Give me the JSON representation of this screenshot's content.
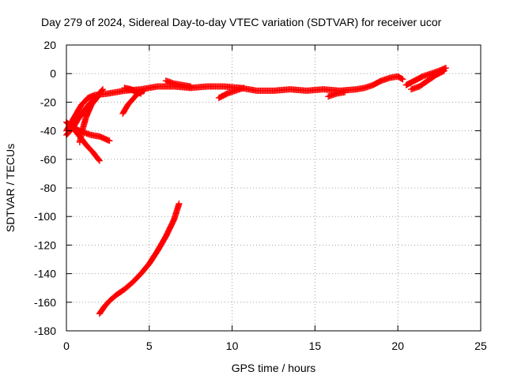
{
  "chart_data": {
    "type": "scatter",
    "title": "Day 279 of 2024, Sidereal Day-to-day VTEC variation (SDTVAR) for receiver ucor",
    "xlabel": "GPS time / hours",
    "ylabel": "SDTVAR / TECUs",
    "xlim": [
      0,
      25
    ],
    "ylim": [
      -180,
      20
    ],
    "xticks": [
      0,
      5,
      10,
      15,
      20,
      25
    ],
    "yticks": [
      20,
      0,
      -20,
      -40,
      -60,
      -80,
      -100,
      -120,
      -140,
      -160,
      -180
    ],
    "grid": true,
    "marker": "+",
    "series_color": "#ff0000",
    "series": [
      {
        "name": "arc-main",
        "points": [
          [
            0.0,
            -40
          ],
          [
            0.3,
            -34
          ],
          [
            0.6,
            -28
          ],
          [
            0.9,
            -22
          ],
          [
            1.3,
            -17
          ],
          [
            1.7,
            -15
          ],
          [
            2.5,
            -14
          ],
          [
            3.5,
            -12
          ],
          [
            4.5,
            -11
          ],
          [
            5.5,
            -9
          ],
          [
            6.5,
            -9
          ],
          [
            7.5,
            -10
          ],
          [
            8.5,
            -9
          ],
          [
            9.5,
            -9
          ],
          [
            10.5,
            -10
          ],
          [
            11.5,
            -12
          ],
          [
            12.5,
            -12
          ],
          [
            13.5,
            -11
          ],
          [
            14.5,
            -12
          ],
          [
            15.5,
            -11
          ],
          [
            16.5,
            -12
          ],
          [
            17.5,
            -11
          ],
          [
            18.0,
            -10
          ],
          [
            18.5,
            -8
          ],
          [
            19.0,
            -5
          ],
          [
            19.5,
            -3
          ],
          [
            20.0,
            -2
          ],
          [
            20.3,
            -4
          ]
        ]
      },
      {
        "name": "arc-late",
        "points": [
          [
            20.5,
            -8
          ],
          [
            21.0,
            -5
          ],
          [
            21.5,
            -2
          ],
          [
            22.0,
            0
          ],
          [
            22.5,
            2
          ],
          [
            22.9,
            4
          ]
        ]
      },
      {
        "name": "arc-late-2",
        "points": [
          [
            20.8,
            -11
          ],
          [
            21.3,
            -9
          ],
          [
            21.8,
            -5
          ],
          [
            22.3,
            -1
          ],
          [
            22.8,
            2
          ]
        ]
      },
      {
        "name": "arc-early-a",
        "points": [
          [
            0.0,
            -43
          ],
          [
            0.4,
            -38
          ],
          [
            0.7,
            -32
          ],
          [
            1.0,
            -27
          ],
          [
            1.4,
            -21
          ],
          [
            1.8,
            -16
          ],
          [
            2.2,
            -11
          ]
        ]
      },
      {
        "name": "arc-early-b",
        "points": [
          [
            0.2,
            -36
          ],
          [
            0.6,
            -39
          ],
          [
            1.0,
            -41
          ],
          [
            1.5,
            -43
          ],
          [
            2.0,
            -44
          ],
          [
            2.6,
            -47
          ]
        ]
      },
      {
        "name": "arc-early-c",
        "points": [
          [
            0.0,
            -34
          ],
          [
            0.4,
            -38
          ],
          [
            0.8,
            -44
          ],
          [
            1.2,
            -50
          ],
          [
            1.6,
            -55
          ],
          [
            2.0,
            -61
          ]
        ]
      },
      {
        "name": "arc-early-d",
        "points": [
          [
            0.8,
            -48
          ],
          [
            1.0,
            -38
          ],
          [
            1.2,
            -30
          ],
          [
            1.5,
            -22
          ],
          [
            1.9,
            -16
          ]
        ]
      },
      {
        "name": "arc-mid-a",
        "points": [
          [
            3.4,
            -28
          ],
          [
            3.7,
            -22
          ],
          [
            4.0,
            -18
          ],
          [
            4.3,
            -14
          ],
          [
            4.7,
            -12
          ]
        ]
      },
      {
        "name": "arc-mid-b",
        "points": [
          [
            3.5,
            -10
          ],
          [
            3.9,
            -11
          ],
          [
            4.2,
            -13
          ],
          [
            4.5,
            -14
          ]
        ]
      },
      {
        "name": "arc-mid-c",
        "points": [
          [
            6.0,
            -5
          ],
          [
            6.5,
            -7
          ],
          [
            7.0,
            -8
          ],
          [
            7.5,
            -9
          ]
        ]
      },
      {
        "name": "arc-mid-d",
        "points": [
          [
            9.2,
            -17
          ],
          [
            9.7,
            -14
          ],
          [
            10.2,
            -12
          ],
          [
            10.7,
            -10
          ]
        ]
      },
      {
        "name": "arc-mid-e",
        "points": [
          [
            15.8,
            -16
          ],
          [
            16.3,
            -14
          ],
          [
            16.8,
            -13
          ]
        ]
      },
      {
        "name": "arc-low",
        "points": [
          [
            2.0,
            -168
          ],
          [
            2.3,
            -163
          ],
          [
            2.6,
            -159
          ],
          [
            3.0,
            -155
          ],
          [
            3.5,
            -151
          ],
          [
            4.0,
            -146
          ],
          [
            4.5,
            -140
          ],
          [
            5.0,
            -133
          ],
          [
            5.5,
            -124
          ],
          [
            6.0,
            -114
          ],
          [
            6.5,
            -102
          ],
          [
            6.8,
            -91
          ]
        ]
      }
    ]
  }
}
